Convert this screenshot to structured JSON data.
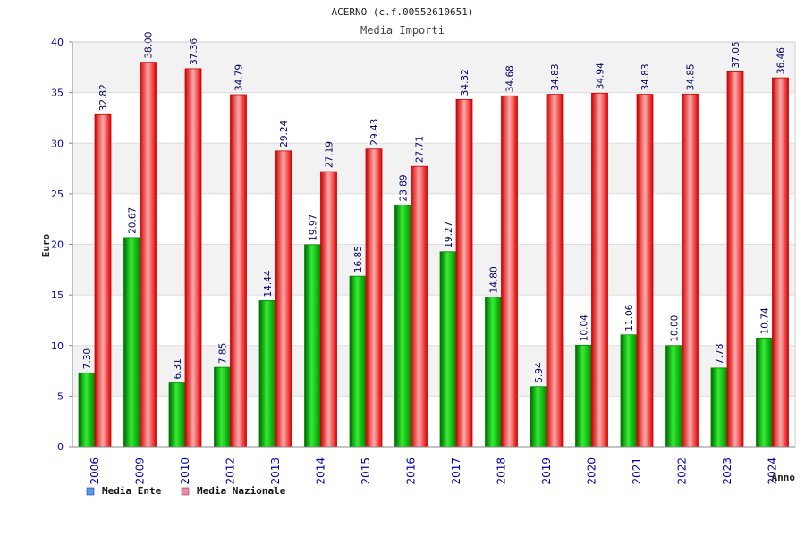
{
  "chart_data": {
    "type": "bar",
    "title": "ACERNO (c.f.00552610651)",
    "subtitle": "Media Importi",
    "xlabel": "Anno",
    "ylabel": "Euro",
    "ylim": [
      0,
      40
    ],
    "yticks": [
      "0",
      "5",
      "10",
      "15",
      "20",
      "25",
      "30",
      "35",
      "40"
    ],
    "grid": true,
    "legend_position": "bottom-left",
    "categories": [
      "2006",
      "2009",
      "2010",
      "2012",
      "2013",
      "2014",
      "2015",
      "2016",
      "2017",
      "2018",
      "2019",
      "2020",
      "2021",
      "2022",
      "2023",
      "2024"
    ],
    "series": [
      {
        "name": "Media Ente",
        "values": [
          7.3,
          20.67,
          6.31,
          7.85,
          14.44,
          19.97,
          16.85,
          23.89,
          19.27,
          14.8,
          5.94,
          10.04,
          11.06,
          10.0,
          7.78,
          10.74
        ],
        "labels": [
          "7.30",
          "20.67",
          "6.31",
          "7.85",
          "14.44",
          "19.97",
          "16.85",
          "23.89",
          "19.27",
          "14.80",
          "5.94",
          "10.04",
          "11.06",
          "10.00",
          "7.78",
          "10.74"
        ]
      },
      {
        "name": "Media Nazionale",
        "values": [
          32.82,
          38.0,
          37.36,
          34.79,
          29.24,
          27.19,
          29.43,
          27.71,
          34.32,
          34.68,
          34.83,
          34.94,
          34.83,
          34.85,
          37.05,
          36.46
        ],
        "labels": [
          "32.82",
          "38.00",
          "37.36",
          "34.79",
          "29.24",
          "27.19",
          "29.43",
          "27.71",
          "34.32",
          "34.68",
          "34.83",
          "34.94",
          "34.83",
          "34.85",
          "37.05",
          "36.46"
        ]
      }
    ]
  },
  "colors": {
    "ente_bar": "#11bb11",
    "ente_bar_dark": "#008800",
    "nazionale_bar": "#ff2222",
    "nazionale_bar_dark": "#cc0000",
    "ente_legend": "#5599ee",
    "nazionale_legend": "#ee88aa",
    "axis_text": "#0000aa",
    "grid_band": "#f2f2f2"
  }
}
